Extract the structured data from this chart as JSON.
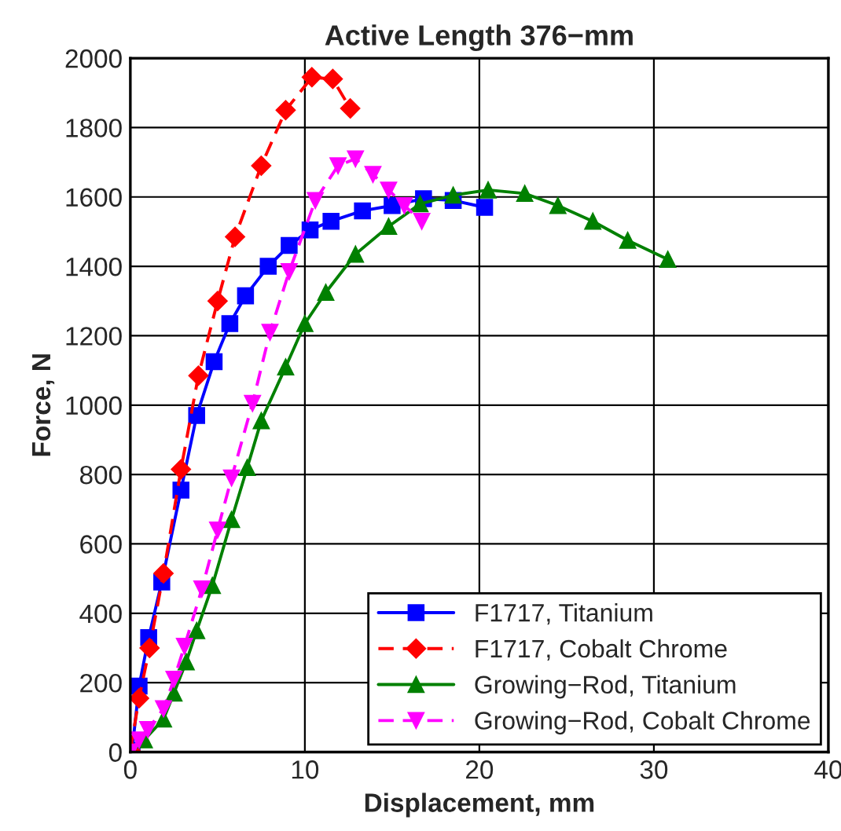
{
  "chart_data": {
    "type": "line",
    "title": "Active Length 376−mm",
    "xlabel": "Displacement, mm",
    "ylabel": "Force, N",
    "xlim": [
      0,
      40
    ],
    "xticks": [
      0,
      10,
      20,
      30,
      40
    ],
    "ylim": [
      0,
      2000
    ],
    "yticks": [
      0,
      200,
      400,
      600,
      800,
      1000,
      1200,
      1400,
      1600,
      1800,
      2000
    ],
    "grid": true,
    "legend": "bottom right",
    "series": [
      {
        "name": "F1717, Titanium",
        "color": "#0000ff",
        "marker": "square",
        "line_style": "solid",
        "x": [
          0.1,
          0.5,
          1.05,
          1.8,
          2.9,
          3.8,
          4.8,
          5.7,
          6.6,
          7.9,
          9.1,
          10.3,
          11.5,
          13.3,
          15.0,
          16.8,
          18.5,
          20.3
        ],
        "values": [
          5,
          190,
          330,
          490,
          755,
          970,
          1125,
          1235,
          1315,
          1400,
          1460,
          1505,
          1530,
          1560,
          1575,
          1595,
          1590,
          1570
        ]
      },
      {
        "name": "F1717, Cobalt Chrome",
        "color": "#ff0000",
        "marker": "diamond",
        "line_style": "dashed",
        "x": [
          0,
          0.5,
          1.1,
          1.9,
          2.9,
          3.9,
          5.0,
          6.0,
          7.5,
          8.9,
          10.4,
          11.6,
          12.6
        ],
        "values": [
          5,
          155,
          300,
          515,
          815,
          1085,
          1300,
          1485,
          1690,
          1850,
          1945,
          1940,
          1855
        ]
      },
      {
        "name": "Growing−Rod, Titanium",
        "color": "#008000",
        "marker": "triangle",
        "line_style": "solid",
        "x": [
          0,
          0.8,
          1.9,
          2.5,
          3.2,
          3.8,
          4.7,
          5.8,
          6.7,
          7.5,
          8.9,
          10.0,
          11.2,
          12.9,
          14.8,
          16.6,
          18.5,
          20.5,
          22.6,
          24.5,
          26.5,
          28.5,
          30.8
        ],
        "values": [
          0,
          35,
          95,
          170,
          260,
          350,
          480,
          670,
          820,
          955,
          1110,
          1235,
          1325,
          1435,
          1515,
          1580,
          1605,
          1620,
          1610,
          1575,
          1530,
          1475,
          1420
        ]
      },
      {
        "name": "Growing−Rod, Cobalt Chrome",
        "color": "#ff00ff",
        "marker": "triangle_down",
        "line_style": "dashed",
        "x": [
          0,
          0.5,
          1.0,
          1.9,
          2.5,
          3.1,
          4.1,
          5.0,
          5.8,
          7.0,
          8.0,
          9.1,
          10.6,
          11.9,
          12.9,
          13.9,
          14.8,
          15.7,
          16.7
        ],
        "values": [
          0,
          35,
          65,
          125,
          210,
          305,
          470,
          640,
          790,
          1005,
          1210,
          1385,
          1590,
          1690,
          1710,
          1665,
          1620,
          1575,
          1530
        ]
      }
    ]
  }
}
